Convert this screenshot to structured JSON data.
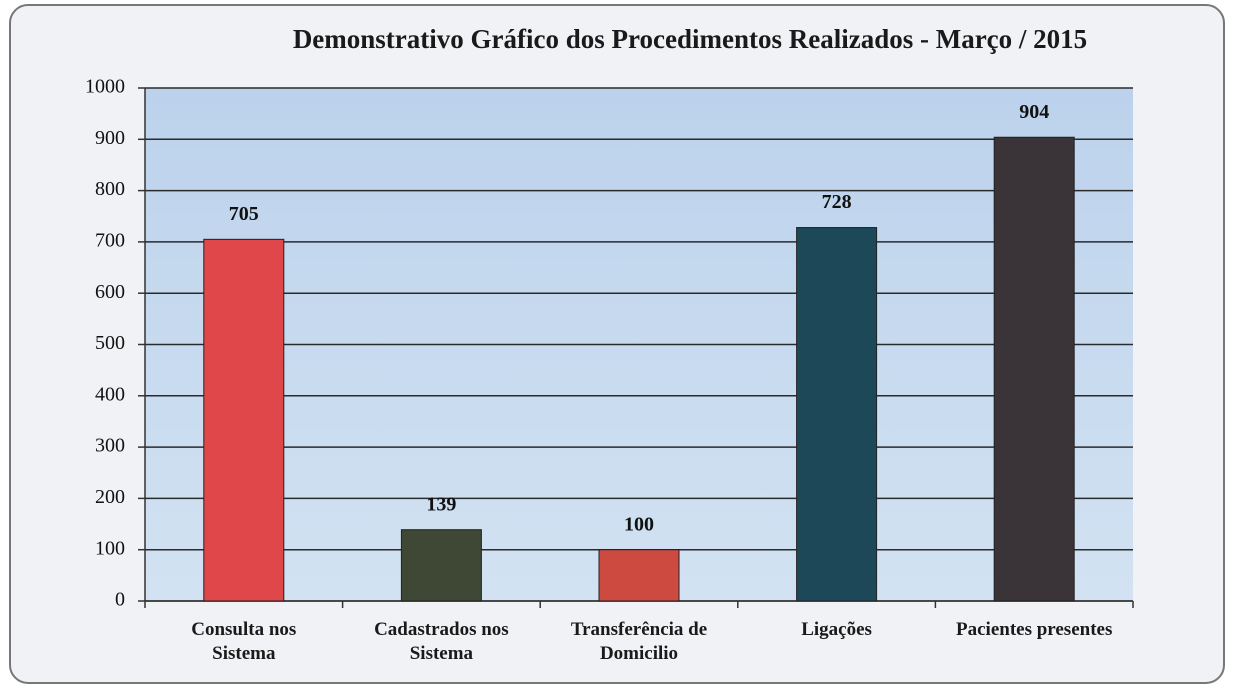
{
  "chart_data": {
    "type": "bar",
    "title": "Demonstrativo Gráfico dos Procedimentos Realizados - Março / 2015",
    "categories": [
      "Consulta nos Sistema",
      "Cadastrados nos Sistema",
      "Transferência de Domicilio",
      "Ligações",
      "Pacientes presentes"
    ],
    "values": [
      705,
      139,
      100,
      728,
      904
    ],
    "colors": [
      "#e0474a",
      "#3e4834",
      "#cc4a40",
      "#1d4858",
      "#3a3337"
    ],
    "ylim": [
      0,
      1000
    ],
    "yticks": [
      0,
      100,
      200,
      300,
      400,
      500,
      600,
      700,
      800,
      900,
      1000
    ],
    "grid": true
  }
}
